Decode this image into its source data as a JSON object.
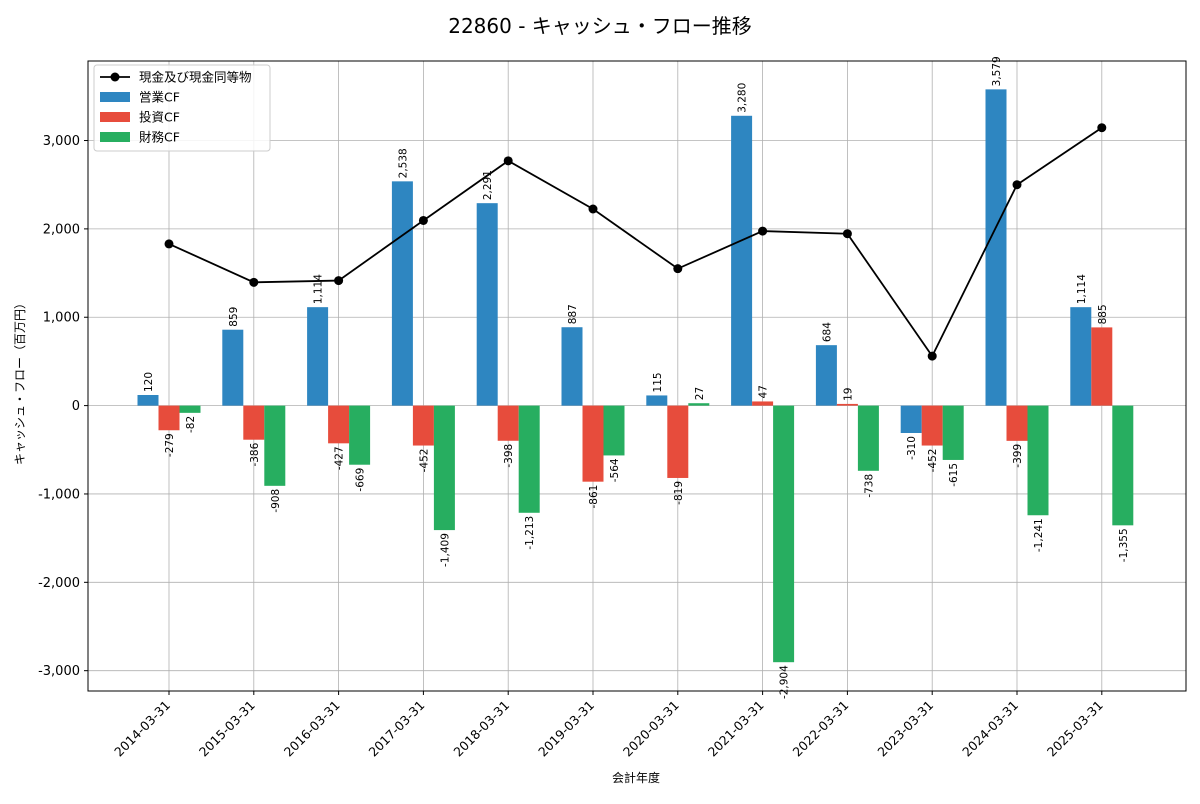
{
  "chart_data": {
    "type": "bar",
    "title": "22860 - キャッシュ・フロー推移",
    "xlabel": "会計年度",
    "ylabel": "キャッシュ・フロー（百万円）",
    "ylim": [
      -3230,
      3900
    ],
    "yticks": [
      -3000,
      -2000,
      -1000,
      0,
      1000,
      2000,
      3000
    ],
    "grid": true,
    "legend_position": "top-left",
    "categories": [
      "2014-03-31",
      "2015-03-31",
      "2016-03-31",
      "2017-03-31",
      "2018-03-31",
      "2019-03-31",
      "2020-03-31",
      "2021-03-31",
      "2022-03-31",
      "2023-03-31",
      "2024-03-31",
      "2025-03-31"
    ],
    "series": [
      {
        "name": "営業CF",
        "kind": "bar",
        "color": "#2e86c1",
        "values": [
          120,
          859,
          1114,
          2538,
          2291,
          887,
          115,
          3280,
          684,
          -310,
          3579,
          1114
        ],
        "labels": [
          "120",
          "859",
          "1,114",
          "2,538",
          "2,291",
          "887",
          "115",
          "3,280",
          "684",
          "-310",
          "3,579",
          "1,114"
        ]
      },
      {
        "name": "投資CF",
        "kind": "bar",
        "color": "#e74c3c",
        "values": [
          -279,
          -386,
          -427,
          -452,
          -398,
          -861,
          -819,
          47,
          19,
          -452,
          -399,
          885
        ],
        "labels": [
          "-279",
          "-386",
          "-427",
          "-452",
          "-398",
          "-861",
          "-819",
          "47",
          "19",
          "-452",
          "-399",
          "885"
        ]
      },
      {
        "name": "財務CF",
        "kind": "bar",
        "color": "#27ae60",
        "values": [
          -82,
          -908,
          -669,
          -1409,
          -1213,
          -564,
          27,
          -2904,
          -738,
          -615,
          -1241,
          -1355
        ],
        "labels": [
          "-82",
          "-908",
          "-669",
          "-1,409",
          "-1,213",
          "-564",
          "27",
          "-2,904",
          "-738",
          "-615",
          "-1,241",
          "-1,355"
        ]
      },
      {
        "name": "現金及び現金同等物",
        "kind": "line",
        "color": "#000000",
        "values": [
          1830,
          1395,
          1415,
          2095,
          2770,
          2225,
          1550,
          1975,
          1945,
          560,
          2500,
          3145
        ]
      }
    ]
  }
}
